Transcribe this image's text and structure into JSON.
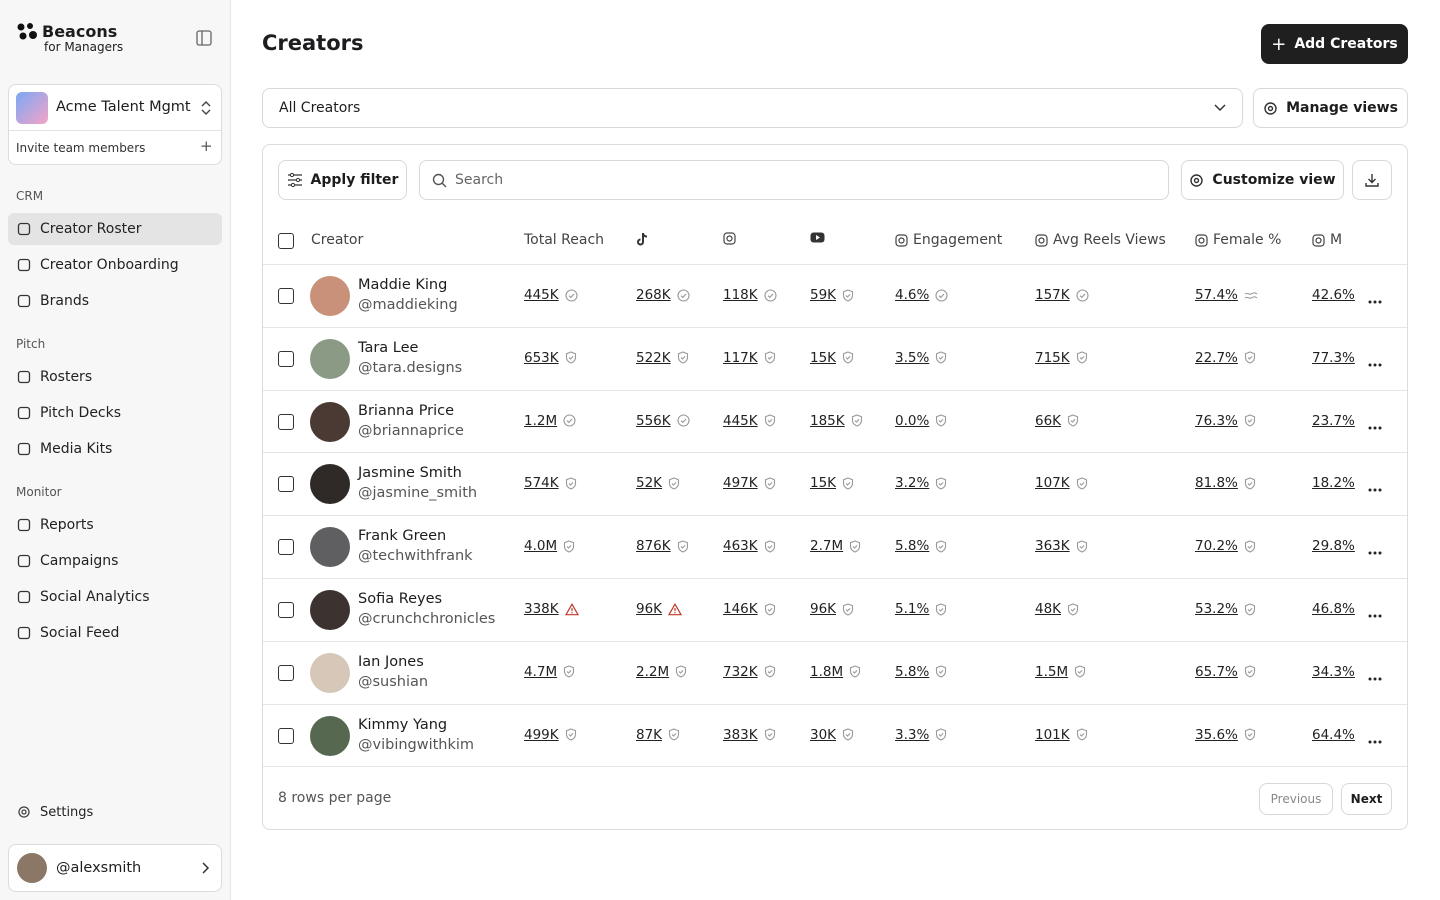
{
  "sidebar": {
    "brand": "Beacons",
    "brand_sub": "for Managers",
    "workspace": "Acme Talent Mgmt",
    "invite": "Invite team members",
    "sections": [
      {
        "title": "CRM",
        "items": [
          "Creator Roster",
          "Creator Onboarding",
          "Brands"
        ]
      },
      {
        "title": "Pitch",
        "items": [
          "Rosters",
          "Pitch Decks",
          "Media Kits"
        ]
      },
      {
        "title": "Monitor",
        "items": [
          "Reports",
          "Campaigns",
          "Social Analytics",
          "Social Feed"
        ]
      }
    ],
    "active_item": "Creator Roster",
    "settings": "Settings",
    "user": "@alexsmith"
  },
  "header": {
    "title": "Creators",
    "add_button": "Add Creators"
  },
  "views": {
    "selected": "All Creators",
    "manage": "Manage views"
  },
  "toolbar": {
    "apply_filter": "Apply filter",
    "search_placeholder": "Search",
    "customize_view": "Customize view"
  },
  "table": {
    "columns": [
      "Creator",
      "Total Reach",
      "Engagement",
      "Avg Reels Views",
      "Female %",
      "M"
    ],
    "rows": [
      {
        "name": "Maddie King",
        "handle": "@maddieking",
        "values": [
          "445K",
          "268K",
          "118K",
          "59K",
          "4.6%",
          "157K",
          "57.4%",
          "42.6%"
        ],
        "badges": [
          "verified",
          "verified",
          "verified",
          "shield",
          "verified",
          "verified",
          "approx"
        ]
      },
      {
        "name": "Tara Lee",
        "handle": "@tara.designs",
        "values": [
          "653K",
          "522K",
          "117K",
          "15K",
          "3.5%",
          "715K",
          "22.7%",
          "77.3%"
        ],
        "badges": [
          "shield",
          "shield",
          "shield",
          "shield",
          "shield",
          "shield",
          "shield"
        ]
      },
      {
        "name": "Brianna Price",
        "handle": "@briannaprice",
        "values": [
          "1.2M",
          "556K",
          "445K",
          "185K",
          "0.0%",
          "66K",
          "76.3%",
          "23.7%"
        ],
        "badges": [
          "verified",
          "verified",
          "shield",
          "shield",
          "shield",
          "shield",
          "shield"
        ]
      },
      {
        "name": "Jasmine Smith",
        "handle": "@jasmine_smith",
        "values": [
          "574K",
          "52K",
          "497K",
          "15K",
          "3.2%",
          "107K",
          "81.8%",
          "18.2%"
        ],
        "badges": [
          "shield",
          "shield",
          "shield",
          "shield",
          "shield",
          "shield",
          "shield"
        ]
      },
      {
        "name": "Frank Green",
        "handle": "@techwithfrank",
        "values": [
          "4.0M",
          "876K",
          "463K",
          "2.7M",
          "5.8%",
          "363K",
          "70.2%",
          "29.8%"
        ],
        "badges": [
          "shield",
          "shield",
          "shield",
          "shield",
          "shield",
          "shield",
          "shield"
        ]
      },
      {
        "name": "Sofia Reyes",
        "handle": "@crunchchronicles",
        "values": [
          "338K",
          "96K",
          "146K",
          "96K",
          "5.1%",
          "48K",
          "53.2%",
          "46.8%"
        ],
        "badges": [
          "warning",
          "warning",
          "shield",
          "shield",
          "shield",
          "shield",
          "shield"
        ]
      },
      {
        "name": "Ian Jones",
        "handle": "@sushian",
        "values": [
          "4.7M",
          "2.2M",
          "732K",
          "1.8M",
          "5.8%",
          "1.5M",
          "65.7%",
          "34.3%"
        ],
        "badges": [
          "shield",
          "shield",
          "shield",
          "shield",
          "shield",
          "shield",
          "shield"
        ]
      },
      {
        "name": "Kimmy Yang",
        "handle": "@vibingwithkim",
        "values": [
          "499K",
          "87K",
          "383K",
          "30K",
          "3.3%",
          "101K",
          "35.6%",
          "64.4%"
        ],
        "badges": [
          "shield",
          "shield",
          "shield",
          "shield",
          "shield",
          "shield",
          "shield"
        ]
      }
    ]
  },
  "footer": {
    "rows_per_page": "8 rows per page",
    "previous": "Previous",
    "next": "Next"
  }
}
